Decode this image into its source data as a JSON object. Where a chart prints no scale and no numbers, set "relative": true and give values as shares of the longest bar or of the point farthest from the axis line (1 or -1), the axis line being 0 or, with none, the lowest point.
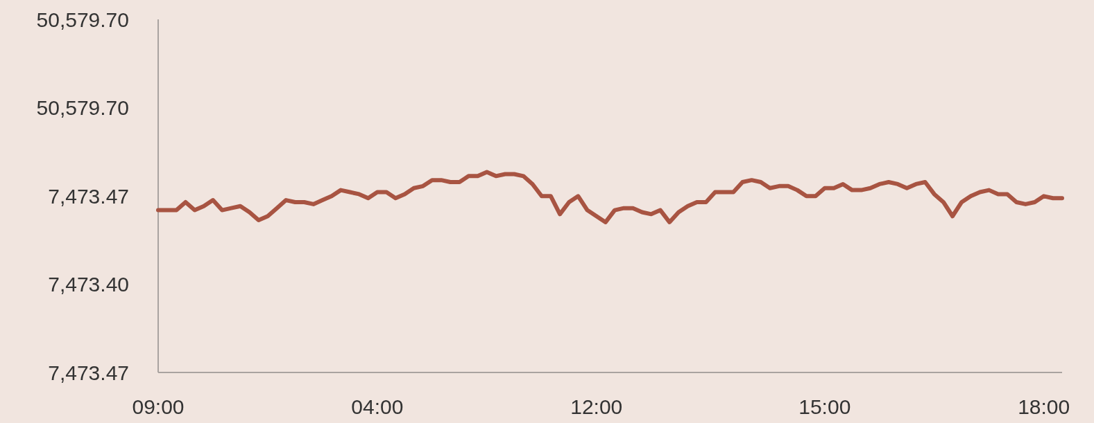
{
  "chart_data": {
    "type": "line",
    "relative": true,
    "categories": [
      "09:00",
      null,
      null,
      null,
      null,
      null,
      null,
      null,
      null,
      null,
      null,
      null,
      null,
      null,
      null,
      null,
      null,
      null,
      null,
      null,
      null,
      null,
      null,
      null,
      "04:00",
      null,
      null,
      null,
      null,
      null,
      null,
      null,
      null,
      null,
      null,
      null,
      null,
      null,
      null,
      null,
      null,
      null,
      null,
      null,
      null,
      null,
      null,
      null,
      "12:00",
      null,
      null,
      null,
      null,
      null,
      null,
      null,
      null,
      null,
      null,
      null,
      null,
      null,
      null,
      null,
      null,
      null,
      null,
      null,
      null,
      null,
      null,
      null,
      null,
      "15:00",
      null,
      null,
      null,
      null,
      null,
      null,
      null,
      null,
      null,
      null,
      null,
      null,
      null,
      null,
      null,
      null,
      null,
      null,
      null,
      null,
      null,
      null,
      null,
      "18:00",
      null,
      null
    ],
    "series": [
      {
        "color": "#a85442",
        "values": [
          0.81,
          0.81,
          0.81,
          0.85,
          0.81,
          0.83,
          0.86,
          0.81,
          0.82,
          0.83,
          0.8,
          0.76,
          0.78,
          0.82,
          0.86,
          0.85,
          0.85,
          0.84,
          0.86,
          0.88,
          0.91,
          0.9,
          0.89,
          0.87,
          0.9,
          0.9,
          0.87,
          0.89,
          0.92,
          0.93,
          0.96,
          0.96,
          0.95,
          0.95,
          0.98,
          0.98,
          1,
          0.98,
          0.99,
          0.99,
          0.98,
          0.94,
          0.88,
          0.88,
          0.79,
          0.85,
          0.88,
          0.81,
          0.78,
          0.75,
          0.81,
          0.82,
          0.82,
          0.8,
          0.79,
          0.81,
          0.75,
          0.8,
          0.83,
          0.85,
          0.85,
          0.9,
          0.9,
          0.9,
          0.95,
          0.96,
          0.95,
          0.92,
          0.93,
          0.93,
          0.91,
          0.88,
          0.88,
          0.92,
          0.92,
          0.94,
          0.91,
          0.91,
          0.92,
          0.94,
          0.95,
          0.94,
          0.92,
          0.94,
          0.95,
          0.89,
          0.85,
          0.78,
          0.85,
          0.88,
          0.9,
          0.91,
          0.89,
          0.89,
          0.85,
          0.84,
          0.85,
          0.88,
          0.87,
          0.87
        ]
      }
    ],
    "annotations": [
      "50,579.70",
      "50,579.70",
      "7,473.47",
      "7,473.40",
      "7,473.47"
    ],
    "marker": "none",
    "line_style": "solid"
  }
}
